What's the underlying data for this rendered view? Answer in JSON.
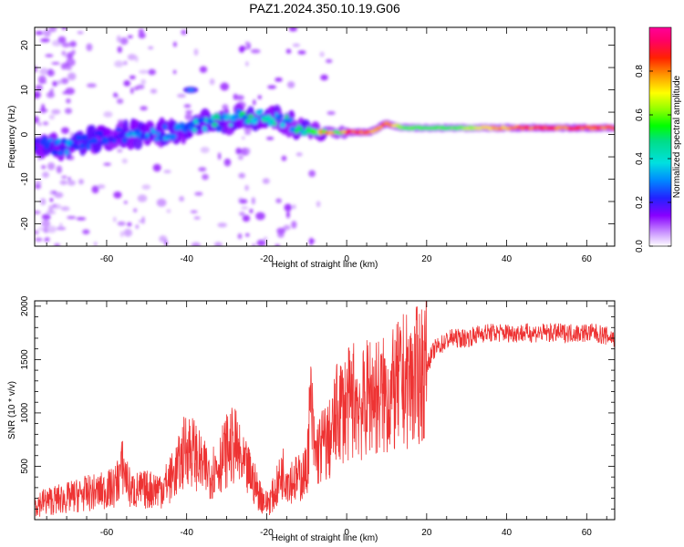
{
  "title": "PAZ1.2024.350.10.19.G06",
  "chart_data": [
    {
      "type": "heatmap",
      "xlabel": "Height of straight line (km)",
      "ylabel": "Frequency (Hz)",
      "xlim": [
        -78,
        67
      ],
      "ylim": [
        -25,
        24
      ],
      "xticks": [
        -60,
        -40,
        -20,
        0,
        20,
        40,
        60
      ],
      "xtick_labels": [
        "-60",
        "-40",
        "-20",
        "0",
        "20",
        "40",
        "60"
      ],
      "yticks": [
        -20,
        -10,
        0,
        10,
        20
      ],
      "ytick_labels": [
        "-20",
        "-10",
        "0",
        "10",
        "20"
      ],
      "colorbar": {
        "label": "Normalized spectral amplitude",
        "range": [
          0,
          1
        ],
        "ticks": [
          0.0,
          0.2,
          0.4,
          0.6,
          0.8
        ],
        "tick_labels": [
          "0.0",
          "0.2",
          "0.4",
          "0.6",
          "0.8"
        ],
        "colormap": "gist_ncar-like (white-purple-blue-cyan-green-yellow-red-magenta)"
      },
      "ridge": [
        {
          "x": -74,
          "f": -2.5,
          "amp": 0.25
        },
        {
          "x": -70,
          "f": -3.0,
          "amp": 0.3
        },
        {
          "x": -66,
          "f": -1.5,
          "amp": 0.25
        },
        {
          "x": -62,
          "f": -1.0,
          "amp": 0.2
        },
        {
          "x": -58,
          "f": -0.5,
          "amp": 0.25
        },
        {
          "x": -54,
          "f": 0.0,
          "amp": 0.3
        },
        {
          "x": -50,
          "f": 0.0,
          "amp": 0.3
        },
        {
          "x": -46,
          "f": 0.5,
          "amp": 0.3
        },
        {
          "x": -42,
          "f": 1.0,
          "amp": 0.3
        },
        {
          "x": -38,
          "f": 1.5,
          "amp": 0.35
        },
        {
          "x": -34,
          "f": 2.5,
          "amp": 0.4
        },
        {
          "x": -30,
          "f": 3.0,
          "amp": 0.4
        },
        {
          "x": -26,
          "f": 4.0,
          "amp": 0.45
        },
        {
          "x": -22,
          "f": 4.0,
          "amp": 0.45
        },
        {
          "x": -18,
          "f": 3.0,
          "amp": 0.4
        },
        {
          "x": -14,
          "f": 2.5,
          "amp": 0.4
        },
        {
          "x": -10,
          "f": 1.0,
          "amp": 0.45
        },
        {
          "x": -6,
          "f": 0.5,
          "amp": 0.7
        },
        {
          "x": -2,
          "f": 0.5,
          "amp": 0.85
        },
        {
          "x": 2,
          "f": 0.5,
          "amp": 0.85
        },
        {
          "x": 6,
          "f": 0.5,
          "amp": 0.8
        },
        {
          "x": 10,
          "f": 2.5,
          "amp": 0.85
        },
        {
          "x": 14,
          "f": 1.5,
          "amp": 0.6
        },
        {
          "x": 20,
          "f": 1.5,
          "amp": 0.55
        },
        {
          "x": 28,
          "f": 1.5,
          "amp": 0.6
        },
        {
          "x": 36,
          "f": 1.5,
          "amp": 0.75
        },
        {
          "x": 44,
          "f": 1.5,
          "amp": 0.85
        },
        {
          "x": 52,
          "f": 1.5,
          "amp": 0.85
        },
        {
          "x": 60,
          "f": 1.5,
          "amp": 0.85
        },
        {
          "x": 67,
          "f": 1.5,
          "amp": 0.85
        }
      ]
    },
    {
      "type": "line",
      "xlabel": "Height of straight line (km)",
      "ylabel": "SNR (10 * v/v)",
      "xlim": [
        -78,
        67
      ],
      "ylim": [
        0,
        2050
      ],
      "xticks": [
        -60,
        -40,
        -20,
        0,
        20,
        40,
        60
      ],
      "xtick_labels": [
        "-60",
        "-40",
        "-20",
        "0",
        "20",
        "40",
        "60"
      ],
      "yticks": [
        500,
        1000,
        1500,
        2000
      ],
      "ytick_labels": [
        "500",
        "1000",
        "1500",
        "2000"
      ],
      "color": "#ee3333",
      "series": [
        {
          "x": [
            -78,
            -74,
            -70,
            -66,
            -62,
            -58,
            -56,
            -54,
            -50,
            -46,
            -44,
            -42,
            -40,
            -38,
            -36,
            -34,
            -32,
            -30,
            -28,
            -26,
            -24,
            -22,
            -20,
            -18,
            -16,
            -14,
            -12,
            -10,
            -9,
            -8,
            -6,
            -4,
            -2,
            0,
            2,
            4,
            6,
            8,
            10,
            12,
            14,
            16,
            18,
            20,
            22,
            24,
            26,
            28,
            30,
            34,
            38,
            42,
            46,
            50,
            54,
            58,
            62,
            67
          ],
          "y": [
            150,
            180,
            200,
            240,
            260,
            300,
            500,
            270,
            280,
            300,
            380,
            500,
            700,
            620,
            480,
            440,
            520,
            650,
            700,
            500,
            420,
            250,
            150,
            250,
            450,
            380,
            380,
            450,
            1100,
            600,
            700,
            750,
            1050,
            1050,
            1150,
            1050,
            1200,
            1150,
            1150,
            1200,
            1300,
            1300,
            1350,
            1450,
            1600,
            1650,
            1700,
            1700,
            1700,
            1750,
            1750,
            1750,
            1750,
            1750,
            1750,
            1750,
            1750,
            1700
          ]
        }
      ]
    }
  ]
}
